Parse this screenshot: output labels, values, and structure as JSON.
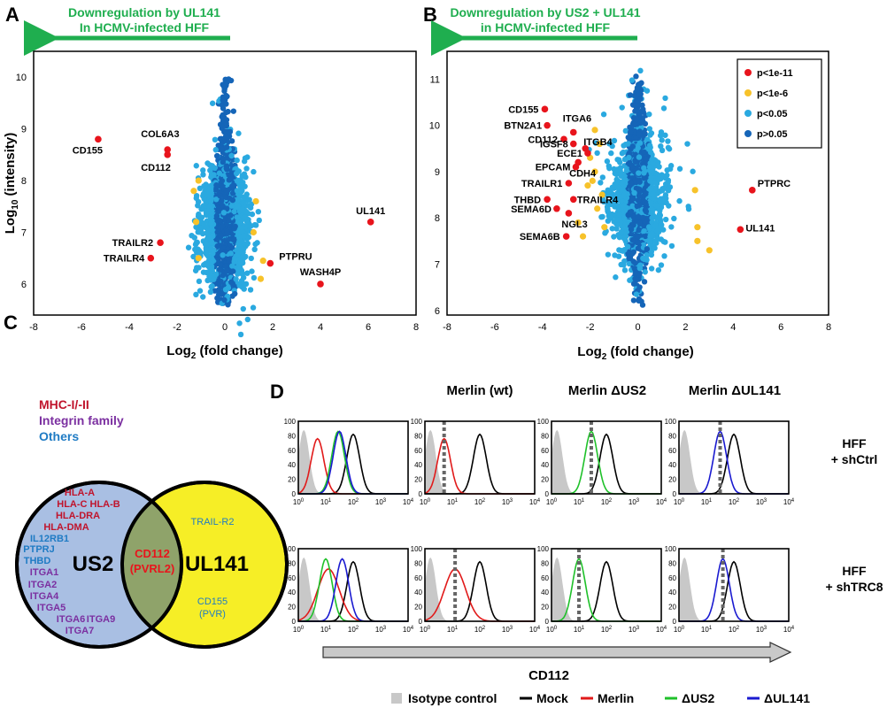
{
  "colors": {
    "green": "#1fae4f",
    "red": "#e8141c",
    "yellow": "#f7c22a",
    "light_blue": "#2aa9e0",
    "dark_blue": "#1565b8",
    "mhc": "#c0142c",
    "integrin": "#7b2fa0",
    "others": "#1f7bc4",
    "us2_circle": "#a9bfe3",
    "ul141_circle": "#f6ee26",
    "overlap": "#8fa36a",
    "isotype": "#c8c8c8",
    "mock": "#000000",
    "merlin": "#e11a1a",
    "dus2": "#1fc12a",
    "dul141": "#1a1ad0"
  },
  "panels": {
    "A": "A",
    "B": "B",
    "C": "C",
    "D": "D"
  },
  "chart_data": [
    {
      "type": "scatter",
      "panel": "A",
      "arrow_text": [
        "Downregulation by UL141",
        "In HCMV-infected HFF"
      ],
      "xlabel_base": "Log",
      "xlabel_sub": "2",
      "xlabel_rest": " (fold change)",
      "ylabel_base": "Log",
      "ylabel_sub": "10",
      "ylabel_rest": " (intensity)",
      "xlim": [
        -8,
        8
      ],
      "ylim": [
        5.4,
        10.5
      ],
      "xticks": [
        "-8",
        "-6",
        "-4",
        "-2",
        "0",
        "2",
        "4",
        "6",
        "8"
      ],
      "yticks": [
        "6",
        "7",
        "8",
        "9",
        "10"
      ],
      "labeled_points": [
        {
          "label": "CD155",
          "x": -5.3,
          "y": 8.8
        },
        {
          "label": "COL6A3",
          "x": -2.4,
          "y": 8.6
        },
        {
          "label": "CD112",
          "x": -2.4,
          "y": 8.5
        },
        {
          "label": "TRAILR2",
          "x": -2.7,
          "y": 6.8
        },
        {
          "label": "TRAILR4",
          "x": -3.1,
          "y": 6.5
        },
        {
          "label": "UL141",
          "x": 6.1,
          "y": 7.2
        },
        {
          "label": "PTPRU",
          "x": 1.9,
          "y": 6.4
        },
        {
          "label": "WASH4P",
          "x": 4.0,
          "y": 6.0
        }
      ],
      "yellow_points": [
        {
          "x": -1.1,
          "y": 8.0
        },
        {
          "x": -1.3,
          "y": 7.8
        },
        {
          "x": -1.2,
          "y": 7.2
        },
        {
          "x": -1.1,
          "y": 6.5
        },
        {
          "x": 1.6,
          "y": 6.45
        },
        {
          "x": 1.5,
          "y": 6.1
        },
        {
          "x": 1.3,
          "y": 7.6
        },
        {
          "x": 1.2,
          "y": 7.0
        }
      ]
    },
    {
      "type": "scatter",
      "panel": "B",
      "arrow_text": [
        "Downregulation by US2 + UL141",
        "in HCMV-infected HFF"
      ],
      "xlabel_base": "Log",
      "xlabel_sub": "2",
      "xlabel_rest": " (fold change)",
      "xlim": [
        -8,
        8
      ],
      "ylim": [
        5.9,
        11.6
      ],
      "xticks": [
        "-8",
        "-6",
        "-4",
        "-2",
        "0",
        "2",
        "4",
        "6",
        "8"
      ],
      "yticks": [
        "6",
        "7",
        "8",
        "9",
        "10",
        "11"
      ],
      "legend_position": "top-right",
      "legend": [
        {
          "label": "p<1e-11",
          "color": "#e8141c"
        },
        {
          "label": "p<1e-6",
          "color": "#f7c22a"
        },
        {
          "label": "p<0.05",
          "color": "#2aa9e0"
        },
        {
          "label": "p>0.05",
          "color": "#1565b8"
        }
      ],
      "labeled_points": [
        {
          "label": "CD155",
          "x": -3.9,
          "y": 10.35
        },
        {
          "label": "BTN2A1",
          "x": -3.8,
          "y": 10.0
        },
        {
          "label": "CD112",
          "x": -3.1,
          "y": 9.7
        },
        {
          "label": "ITGA6",
          "x": -2.7,
          "y": 9.85
        },
        {
          "label": "IGSF8",
          "x": -2.7,
          "y": 9.6
        },
        {
          "label": "ITGB4",
          "x": -2.2,
          "y": 9.5
        },
        {
          "label": "ECE1",
          "x": -2.1,
          "y": 9.4
        },
        {
          "label": "EPCAM",
          "x": -2.6,
          "y": 9.1
        },
        {
          "label": "CDH4",
          "x": -2.5,
          "y": 9.2
        },
        {
          "label": "TRAILR1",
          "x": -2.9,
          "y": 8.75
        },
        {
          "label": "THBD",
          "x": -3.8,
          "y": 8.4
        },
        {
          "label": "TRAILR4",
          "x": -2.7,
          "y": 8.4
        },
        {
          "label": "SEMA6D",
          "x": -3.4,
          "y": 8.2
        },
        {
          "label": "NGL3",
          "x": -2.9,
          "y": 8.1
        },
        {
          "label": "SEMA6B",
          "x": -3.0,
          "y": 7.6
        },
        {
          "label": "PTPRC",
          "x": 4.8,
          "y": 8.6
        },
        {
          "label": "UL141",
          "x": 4.3,
          "y": 7.75
        }
      ],
      "yellow_points": [
        {
          "x": -1.8,
          "y": 9.9
        },
        {
          "x": -2.0,
          "y": 9.3
        },
        {
          "x": -1.8,
          "y": 9.0
        },
        {
          "x": -1.9,
          "y": 8.8
        },
        {
          "x": -2.1,
          "y": 8.7
        },
        {
          "x": -1.5,
          "y": 8.5
        },
        {
          "x": -1.7,
          "y": 8.2
        },
        {
          "x": -2.5,
          "y": 7.9
        },
        {
          "x": -2.3,
          "y": 7.6
        },
        {
          "x": -1.4,
          "y": 7.8
        },
        {
          "x": 2.4,
          "y": 8.6
        },
        {
          "x": 2.5,
          "y": 7.8
        },
        {
          "x": 2.5,
          "y": 7.5
        },
        {
          "x": 3.0,
          "y": 7.3
        },
        {
          "x": -1.6,
          "y": 9.6
        }
      ]
    },
    {
      "type": "histogram-grid",
      "panel": "D",
      "column_titles": [
        "",
        "Merlin (wt)",
        "Merlin ΔUS2",
        "Merlin ΔUL141"
      ],
      "row_labels": [
        [
          "HFF",
          "+ shCtrl"
        ],
        [
          "HFF",
          "+ shTRC8"
        ]
      ],
      "x_ticks_base": "10",
      "x_ticks_exp": [
        "0",
        "1",
        "2",
        "3",
        "4"
      ],
      "y_ticks": [
        "0",
        "20",
        "40",
        "60",
        "80",
        "100"
      ],
      "xlabel": "CD112",
      "legend": [
        {
          "label": "Isotype control",
          "color": "#c8c8c8",
          "kind": "fill"
        },
        {
          "label": "Mock",
          "color": "#000000",
          "kind": "line"
        },
        {
          "label": "Merlin",
          "color": "#e11a1a",
          "kind": "line"
        },
        {
          "label": "ΔUS2",
          "color": "#1fc12a",
          "kind": "line"
        },
        {
          "label": "ΔUL141",
          "color": "#1a1ad0",
          "kind": "line"
        }
      ],
      "row1_peaks_log": {
        "isotype": 0.2,
        "mock": 2.0,
        "merlin": 0.7,
        "dus2": 1.45,
        "dul141": 1.5
      },
      "row2_peaks_log": {
        "isotype": 0.2,
        "mock": 2.0,
        "merlin": 1.1,
        "dus2": 1.0,
        "dul141": 1.6
      }
    }
  ],
  "venn": {
    "legend": [
      {
        "label": "MHC-I/-II",
        "color": "#c0142c"
      },
      {
        "label": "Integrin family",
        "color": "#7b2fa0"
      },
      {
        "label": "Others",
        "color": "#1f7bc4"
      }
    ],
    "us2_label": "US2",
    "ul141_label": "UL141",
    "overlap_lines": [
      "CD112",
      "(PVRL2)"
    ],
    "us2_items": [
      {
        "text": "HLA-A",
        "group": "mhc"
      },
      {
        "text": "HLA-C HLA-B",
        "group": "mhc"
      },
      {
        "text": "HLA-DRA",
        "group": "mhc"
      },
      {
        "text": "HLA-DMA",
        "group": "mhc"
      },
      {
        "text": "IL12RB1",
        "group": "others"
      },
      {
        "text": "PTPRJ",
        "group": "others"
      },
      {
        "text": "THBD",
        "group": "others"
      },
      {
        "text": "ITGA1",
        "group": "integrin"
      },
      {
        "text": "ITGA2",
        "group": "integrin"
      },
      {
        "text": "ITGA4",
        "group": "integrin"
      },
      {
        "text": "ITGA5",
        "group": "integrin"
      },
      {
        "text": "ITGA6",
        "group": "integrin"
      },
      {
        "text": "ITGA9",
        "group": "integrin"
      },
      {
        "text": "ITGA7",
        "group": "integrin"
      }
    ],
    "ul141_items": [
      {
        "text": "TRAIL-R2",
        "group": "others"
      },
      {
        "text": "CD155",
        "group": "others"
      },
      {
        "text": "(PVR)",
        "group": "others"
      }
    ]
  }
}
